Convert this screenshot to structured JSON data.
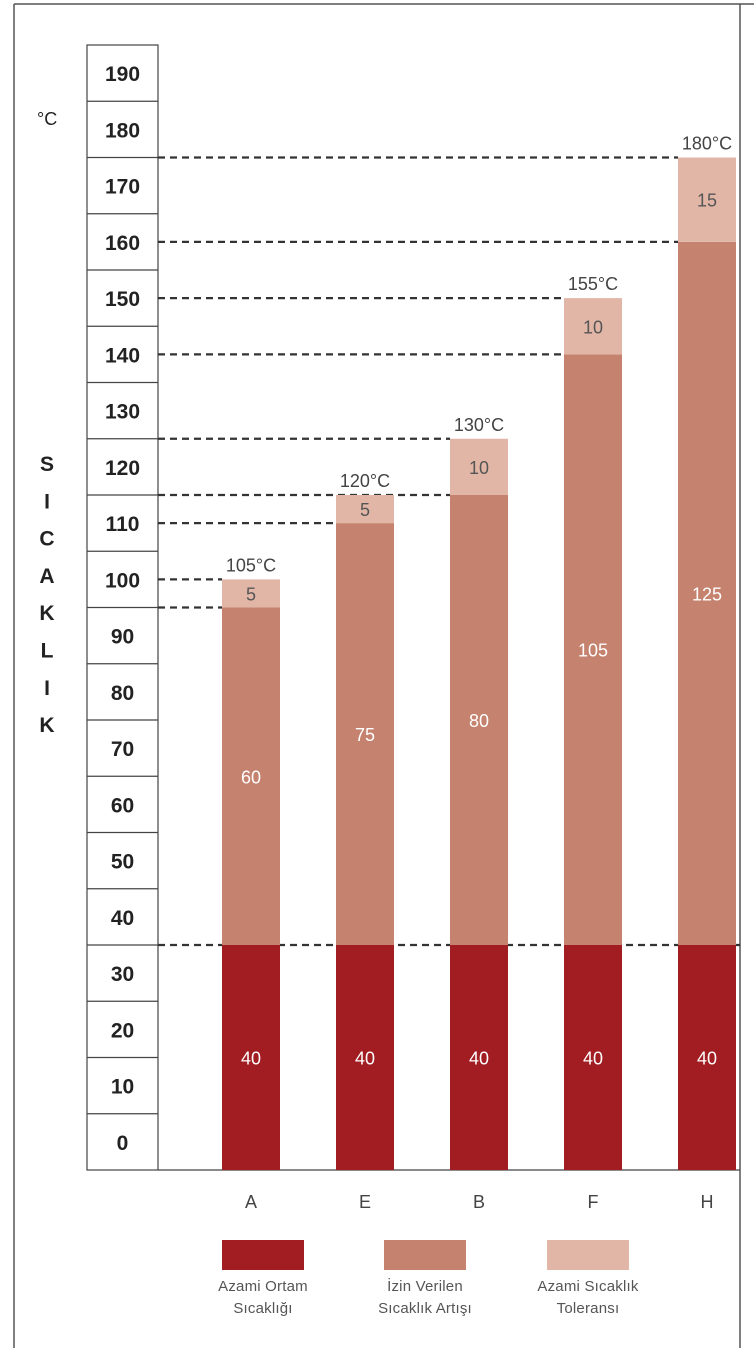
{
  "chart_data": {
    "type": "bar",
    "stacked": true,
    "categories": [
      "A",
      "E",
      "B",
      "F",
      "H"
    ],
    "series": [
      {
        "name": "Azami Ortam Sıcaklığı",
        "values": [
          40,
          40,
          40,
          40,
          40
        ],
        "color": "#a11d22"
      },
      {
        "name": "İzin Verilen Sıcaklık Artışı",
        "values": [
          60,
          75,
          80,
          105,
          125
        ],
        "color": "#c5826e"
      },
      {
        "name": "Azami Sıcaklık Toleransı",
        "values": [
          5,
          5,
          10,
          10,
          15
        ],
        "color": "#e2b6a7"
      }
    ],
    "total_labels": [
      "105°C",
      "120°C",
      "130°C",
      "155°C",
      "180°C"
    ],
    "unit_label": "°C",
    "ylabel": "SICAKLIK",
    "yticks": [
      0,
      10,
      20,
      30,
      40,
      50,
      60,
      70,
      80,
      90,
      100,
      110,
      120,
      130,
      140,
      150,
      160,
      170,
      180,
      190
    ],
    "ylim": [
      0,
      200
    ],
    "grid": false,
    "reference_lines": true,
    "legend_position": "bottom"
  }
}
